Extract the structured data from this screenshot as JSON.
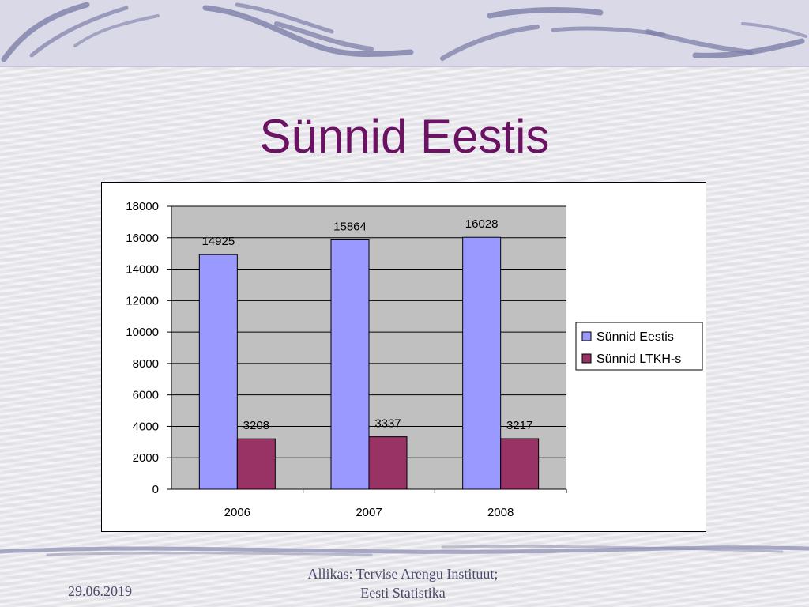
{
  "slide": {
    "title": "Sünnid Eestis",
    "footer_date": "29.06.2019",
    "footer_source_line1": "Allikas: Tervise Arengu Instituut;",
    "footer_source_line2": "Eesti Statistika"
  },
  "colors": {
    "title": "#6b1263",
    "series_eestis": "#9999ff",
    "series_ltkh": "#993366",
    "plot_background": "#c0c0c0"
  },
  "chart_data": {
    "type": "bar",
    "categories": [
      "2006",
      "2007",
      "2008"
    ],
    "series": [
      {
        "name": "Sünnid Eestis",
        "values": [
          14925,
          15864,
          16028
        ]
      },
      {
        "name": "Sünnid LTKH-s",
        "values": [
          3208,
          3337,
          3217
        ]
      }
    ],
    "data_labels": true,
    "ylim": [
      0,
      18000
    ],
    "yticks": [
      0,
      2000,
      4000,
      6000,
      8000,
      10000,
      12000,
      14000,
      16000,
      18000
    ],
    "grid": true,
    "legend_position": "right",
    "xlabel": "",
    "ylabel": ""
  }
}
